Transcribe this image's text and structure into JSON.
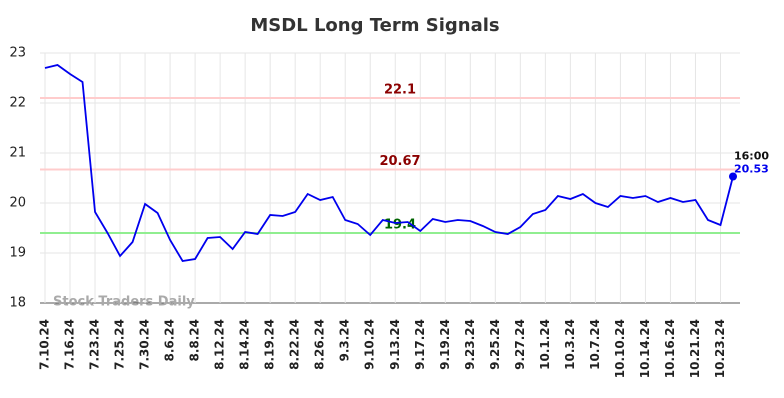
{
  "chart_data": {
    "type": "line",
    "title": "MSDL Long Term Signals",
    "categories": [
      "7.10.24",
      null,
      "7.16.24",
      null,
      "7.23.24",
      null,
      "7.25.24",
      null,
      "7.30.24",
      null,
      "8.6.24",
      null,
      "8.8.24",
      null,
      "8.12.24",
      null,
      "8.14.24",
      null,
      "8.19.24",
      null,
      "8.22.24",
      null,
      "8.26.24",
      null,
      "9.3.24",
      null,
      "9.10.24",
      null,
      "9.13.24",
      null,
      "9.17.24",
      null,
      "9.19.24",
      null,
      "9.23.24",
      null,
      "9.25.24",
      null,
      "9.27.24",
      null,
      "10.1.24",
      null,
      "10.3.24",
      null,
      "10.7.24",
      null,
      "10.10.24",
      null,
      "10.14.24",
      null,
      "10.16.24",
      null,
      "10.21.24",
      null,
      "10.23.24",
      null
    ],
    "series": [
      {
        "name": "MSDL",
        "color": "#0000ee",
        "values": [
          22.7,
          22.76,
          22.58,
          22.42,
          19.82,
          19.4,
          18.94,
          19.22,
          19.98,
          19.8,
          19.26,
          18.84,
          18.88,
          19.3,
          19.32,
          19.08,
          19.42,
          19.38,
          19.76,
          19.74,
          19.82,
          20.18,
          20.06,
          20.12,
          19.66,
          19.58,
          19.36,
          19.66,
          19.6,
          19.62,
          19.44,
          19.68,
          19.62,
          19.66,
          19.64,
          19.54,
          19.42,
          19.38,
          19.52,
          19.78,
          19.86,
          20.14,
          20.08,
          20.18,
          20.0,
          19.92,
          20.14,
          20.1,
          20.14,
          20.02,
          20.1,
          20.02,
          20.06,
          19.66,
          19.56,
          20.53
        ]
      }
    ],
    "last_point_label": "16:00",
    "hlines": [
      {
        "value": 22.1,
        "color": "#ffcccc",
        "label_color": "#8b0000"
      },
      {
        "value": 20.67,
        "color": "#ffcccc",
        "label_color": "#8b0000"
      },
      {
        "value": 19.4,
        "color": "#90ee90",
        "label_color": "#006400"
      }
    ],
    "watermark": "Stock Traders Daily",
    "ylim": [
      18,
      23
    ],
    "yticks": [
      18,
      19,
      20,
      21,
      22,
      23
    ],
    "grid": true
  }
}
